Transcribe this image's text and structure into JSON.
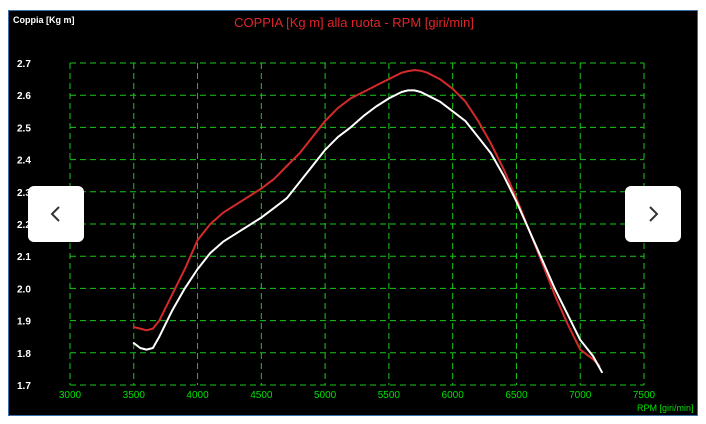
{
  "chart_data": {
    "type": "line",
    "title": "COPPIA [Kg m] alla ruota - RPM [giri/min]",
    "ylabel": "Coppia [Kg m]",
    "xlabel": "RPM [giri/min]",
    "xlim": [
      3000,
      7500
    ],
    "ylim": [
      1.7,
      2.7
    ],
    "x_ticks": [
      "3000",
      "3500",
      "4000",
      "4500",
      "5000",
      "5500",
      "6000",
      "6500",
      "7000",
      "7500"
    ],
    "y_ticks": [
      "1.7",
      "1.8",
      "1.9",
      "2.0",
      "2.1",
      "2.2",
      "2.3",
      "2.4",
      "2.5",
      "2.6",
      "2.7"
    ],
    "grid": true,
    "series": [
      {
        "color": "#d42a2a",
        "x": [
          3500,
          3550,
          3600,
          3650,
          3700,
          3800,
          3900,
          4000,
          4100,
          4200,
          4300,
          4400,
          4500,
          4600,
          4700,
          4800,
          4900,
          5000,
          5100,
          5200,
          5300,
          5400,
          5500,
          5600,
          5650,
          5700,
          5750,
          5800,
          5900,
          6000,
          6100,
          6200,
          6300,
          6400,
          6500,
          6600,
          6700,
          6800,
          6900,
          7000,
          7100,
          7150
        ],
        "y": [
          1.88,
          1.875,
          1.87,
          1.875,
          1.9,
          1.98,
          2.06,
          2.15,
          2.2,
          2.235,
          2.26,
          2.285,
          2.31,
          2.34,
          2.38,
          2.42,
          2.47,
          2.52,
          2.56,
          2.59,
          2.61,
          2.63,
          2.65,
          2.67,
          2.675,
          2.678,
          2.676,
          2.67,
          2.65,
          2.62,
          2.58,
          2.52,
          2.45,
          2.37,
          2.28,
          2.18,
          2.08,
          1.98,
          1.89,
          1.81,
          1.78,
          1.76
        ]
      },
      {
        "color": "#ffffff",
        "x": [
          3500,
          3550,
          3600,
          3650,
          3700,
          3800,
          3900,
          4000,
          4100,
          4200,
          4300,
          4400,
          4500,
          4600,
          4700,
          4800,
          4900,
          5000,
          5100,
          5200,
          5300,
          5400,
          5500,
          5600,
          5650,
          5700,
          5750,
          5800,
          5900,
          6000,
          6100,
          6200,
          6300,
          6400,
          6500,
          6600,
          6700,
          6800,
          6900,
          7000,
          7100,
          7170
        ],
        "y": [
          1.83,
          1.815,
          1.81,
          1.815,
          1.85,
          1.93,
          2.0,
          2.06,
          2.11,
          2.145,
          2.17,
          2.195,
          2.22,
          2.25,
          2.28,
          2.33,
          2.38,
          2.43,
          2.47,
          2.5,
          2.535,
          2.565,
          2.59,
          2.61,
          2.615,
          2.615,
          2.61,
          2.6,
          2.58,
          2.55,
          2.52,
          2.47,
          2.42,
          2.35,
          2.27,
          2.18,
          2.09,
          2.0,
          1.92,
          1.84,
          1.79,
          1.74
        ]
      }
    ]
  },
  "nav": {
    "prev_icon": "chevron-left-icon",
    "next_icon": "chevron-right-icon"
  }
}
